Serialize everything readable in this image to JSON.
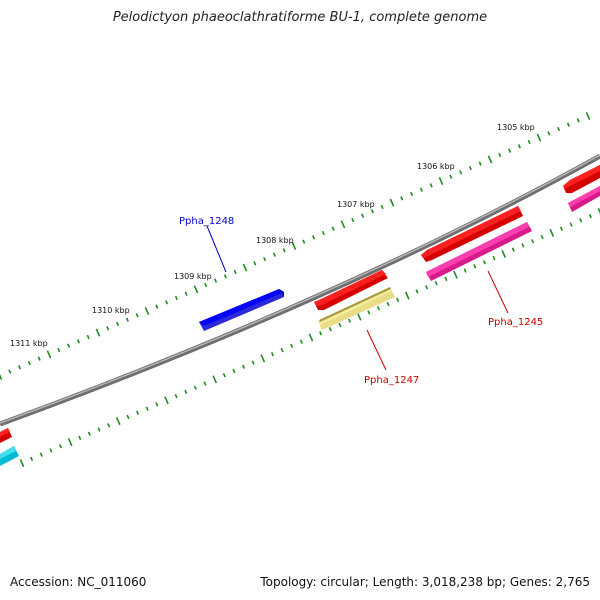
{
  "title": "Pelodictyon phaeoclathratiforme BU-1, complete genome",
  "footer": {
    "accession_text": "Accession: NC_011060",
    "topology_text": "Topology: circular; Length: 3,018,238 bp; Genes: 2,765"
  },
  "colors": {
    "backbone": "#808080",
    "ticks": "#228b22",
    "gene_blue": "#0000ff",
    "gene_red": "#ff0000",
    "gene_pink": "#ff1493",
    "gene_yellow": "#f0e68c",
    "gene_cyan": "#00ced1",
    "label_blue": "#0000cc",
    "label_red": "#cc0000"
  },
  "kbp_labels": [
    "1305 kbp",
    "1306 kbp",
    "1307 kbp",
    "1308 kbp",
    "1309 kbp",
    "1310 kbp",
    "1311 kbp"
  ],
  "genes": [
    {
      "name": "Ppha_1248",
      "color": "gene_blue",
      "label_color": "label_blue"
    },
    {
      "name": "Ppha_1247",
      "color": "gene_red",
      "label_color": "label_red"
    },
    {
      "name": "Ppha_1245",
      "color": "gene_red",
      "label_color": "label_red"
    }
  ]
}
